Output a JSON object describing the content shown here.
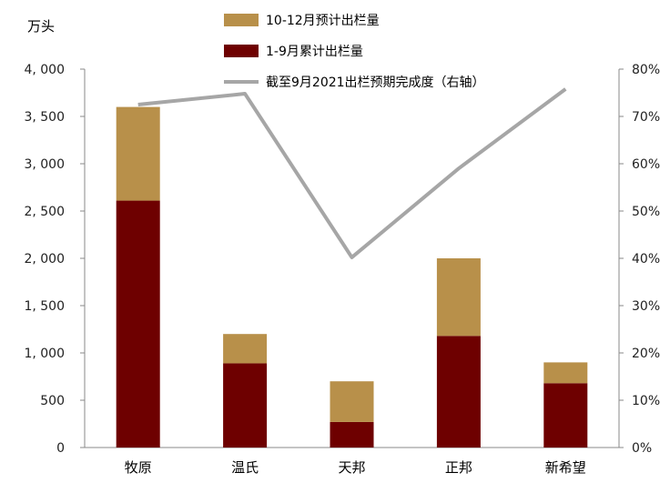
{
  "chart_data": {
    "type": "bar",
    "stacked": true,
    "y_unit_label": "万头",
    "categories": [
      "牧原",
      "温氏",
      "天邦",
      "正邦",
      "新希望"
    ],
    "series": [
      {
        "name": "1-9月累计出栏量",
        "values": [
          2610,
          890,
          270,
          1180,
          680
        ],
        "color": "#6e0000",
        "axis": "left"
      },
      {
        "name": "10-12月预计出栏量",
        "values": [
          990,
          310,
          430,
          820,
          220
        ],
        "color": "#b8904a",
        "axis": "left"
      },
      {
        "name": "截至9月2021出栏预期完成度（右轴）",
        "type": "line",
        "values": [
          72.5,
          74.8,
          40.2,
          59.0,
          75.8
        ],
        "color": "#a6a6a6",
        "axis": "right"
      }
    ],
    "left_axis": {
      "min": 0,
      "max": 4000,
      "ticks": [
        "0",
        "500",
        "1, 000",
        "1, 500",
        "2, 000",
        "2, 500",
        "3, 000",
        "3, 500",
        "4, 000"
      ]
    },
    "right_axis": {
      "min": 0,
      "max": 80,
      "ticks": [
        "0%",
        "10%",
        "20%",
        "30%",
        "40%",
        "50%",
        "60%",
        "70%",
        "80%"
      ]
    },
    "legend_order": [
      1,
      0,
      2
    ],
    "legend_position": "top-center"
  }
}
